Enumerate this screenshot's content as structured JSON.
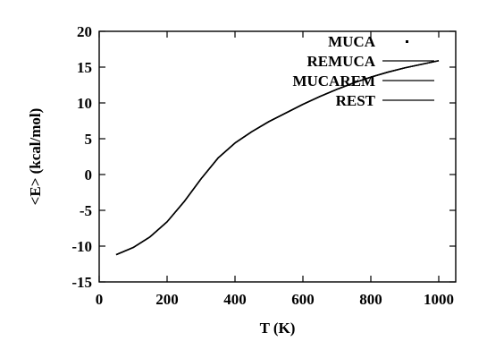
{
  "chart_data": {
    "type": "line",
    "xlabel": "T (K)",
    "ylabel": "<E> (kcal/mol)",
    "xlim": [
      0,
      1050
    ],
    "ylim": [
      -15,
      20
    ],
    "x_ticks": [
      0,
      200,
      400,
      600,
      800,
      1000
    ],
    "y_ticks": [
      -15,
      -10,
      -5,
      0,
      5,
      10,
      15,
      20
    ],
    "grid": false,
    "legend_position": "top-right",
    "series": [
      {
        "name": "MUCA",
        "style": "points",
        "x": [],
        "y": []
      },
      {
        "name": "REMUCA",
        "style": "line",
        "x": [
          50,
          100,
          150,
          200,
          250,
          300,
          350,
          400,
          450,
          500,
          550,
          600,
          650,
          700,
          750,
          800,
          850,
          900,
          950,
          1000
        ],
        "y": [
          -11.2,
          -10.2,
          -8.7,
          -6.6,
          -3.8,
          -0.6,
          2.3,
          4.4,
          6.0,
          7.4,
          8.6,
          9.8,
          10.9,
          11.9,
          12.8,
          13.6,
          14.3,
          14.9,
          15.4,
          15.9
        ]
      },
      {
        "name": "MUCAREM",
        "style": "line",
        "x": [
          50,
          100,
          150,
          200,
          250,
          300,
          350,
          400,
          450,
          500,
          550,
          600,
          650,
          700,
          750,
          800,
          850,
          900,
          950,
          1000
        ],
        "y": [
          -11.2,
          -10.2,
          -8.7,
          -6.6,
          -3.8,
          -0.6,
          2.3,
          4.4,
          6.0,
          7.4,
          8.6,
          9.8,
          10.9,
          11.9,
          12.8,
          13.6,
          14.3,
          14.9,
          15.4,
          15.9
        ]
      },
      {
        "name": "REST",
        "style": "line",
        "x": [
          50,
          100,
          150,
          200,
          250,
          300,
          350,
          400,
          450,
          500,
          550,
          600,
          650,
          700,
          750,
          800,
          850,
          900,
          950,
          1000
        ],
        "y": [
          -11.2,
          -10.2,
          -8.7,
          -6.6,
          -3.8,
          -0.6,
          2.3,
          4.4,
          6.0,
          7.4,
          8.6,
          9.8,
          10.9,
          11.9,
          12.8,
          13.6,
          14.3,
          14.9,
          15.4,
          15.9
        ]
      }
    ],
    "colors": {
      "line": "#000000",
      "frame": "#000000",
      "background": "#ffffff"
    }
  }
}
